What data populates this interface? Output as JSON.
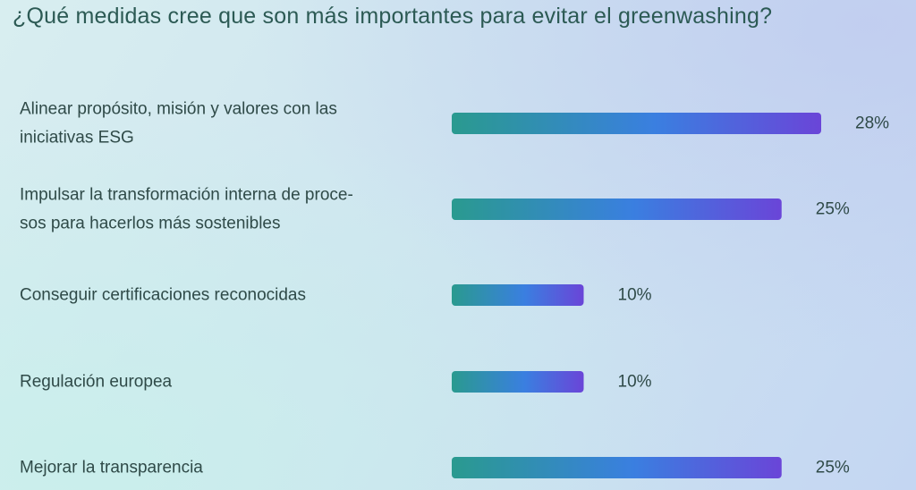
{
  "chart_data": {
    "type": "bar",
    "orientation": "horizontal",
    "title": "¿Qué medidas cree que son más importantes para evitar el greenwashing?",
    "categories": [
      [
        "Alinear propósito, misión y valores con las",
        "iniciativas ESG"
      ],
      [
        "Impulsar la transformación interna de proce-",
        "sos para hacerlos más sostenibles"
      ],
      [
        "Conseguir certificaciones reconocidas"
      ],
      [
        "Regulación europea"
      ],
      [
        "Mejorar la transparencia"
      ]
    ],
    "values": [
      28,
      25,
      10,
      10,
      25
    ],
    "value_labels": [
      "28%",
      "25%",
      "10%",
      "10%",
      "25%"
    ],
    "xlim": [
      0,
      28
    ],
    "grid": false,
    "legend": "none",
    "colors": {
      "bar_start": "#2a9a8f",
      "bar_mid": "#3a7fe0",
      "bar_end": "#6a45d8",
      "title": "#2c5a54",
      "text": "#2f4a48"
    }
  }
}
